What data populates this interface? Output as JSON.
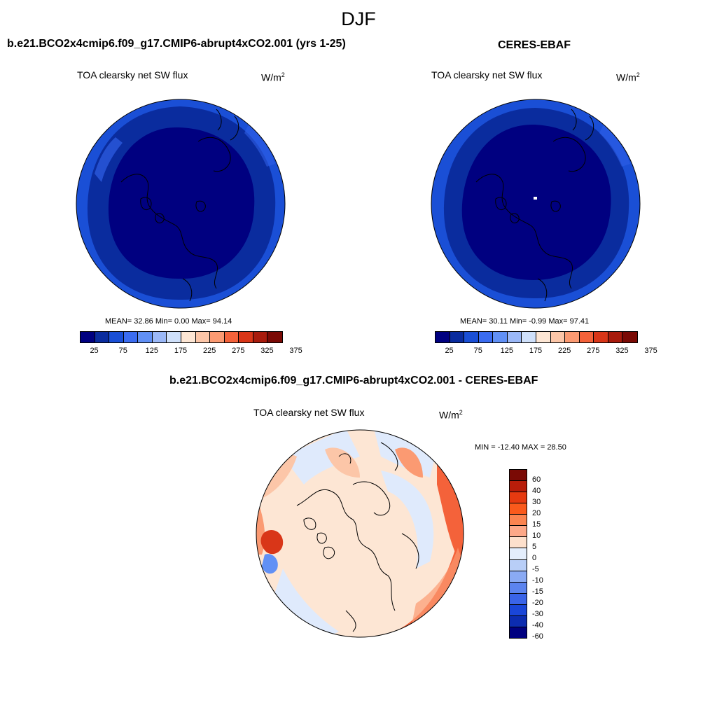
{
  "title": "DJF",
  "panels": [
    {
      "title": "b.e21.BCO2x4cmip6.f09_g17.CMIP6-abrupt4xCO2.001 (yrs 1-25)",
      "variable": "TOA clearsky net SW flux",
      "units_base": "W/m",
      "units_exp": "2",
      "stats": "MEAN=  32.86  Min=   0.00  Max=  94.14"
    },
    {
      "title": "CERES-EBAF",
      "variable": "TOA clearsky net SW flux",
      "units_base": "W/m",
      "units_exp": "2",
      "stats": "MEAN=  30.11  Min=  -0.99  Max=  97.41"
    },
    {
      "title": "b.e21.BCO2x4cmip6.f09_g17.CMIP6-abrupt4xCO2.001 - CERES-EBAF",
      "variable": "TOA clearsky net SW flux",
      "units_base": "W/m",
      "units_exp": "2",
      "stats": "MIN = -12.40 MAX =  28.50"
    }
  ],
  "colorbar_top": {
    "colors": [
      "#000080",
      "#0a2c9e",
      "#1a4fd6",
      "#3b6cf0",
      "#6190f5",
      "#9bb8f7",
      "#cfe0fa",
      "#fde6d4",
      "#fcc6a8",
      "#fb9a72",
      "#f4623a",
      "#d93618",
      "#a81b0c",
      "#7a0a05"
    ],
    "labels": [
      "25",
      "75",
      "125",
      "175",
      "225",
      "275",
      "325",
      "375"
    ]
  },
  "colorbar_diff": {
    "colors": [
      "#7a0a05",
      "#b81d0a",
      "#e63a10",
      "#fa5a1c",
      "#fb8450",
      "#fda888",
      "#fde0cc",
      "#e4eefc",
      "#b8cef7",
      "#8aaaf4",
      "#5c84ef",
      "#3a64e8",
      "#1a46d8",
      "#0c2cb0",
      "#000080"
    ],
    "labels": [
      "60",
      "40",
      "30",
      "20",
      "15",
      "10",
      "5",
      "0",
      "-5",
      "-10",
      "-15",
      "-20",
      "-30",
      "-40",
      "-60"
    ]
  }
}
